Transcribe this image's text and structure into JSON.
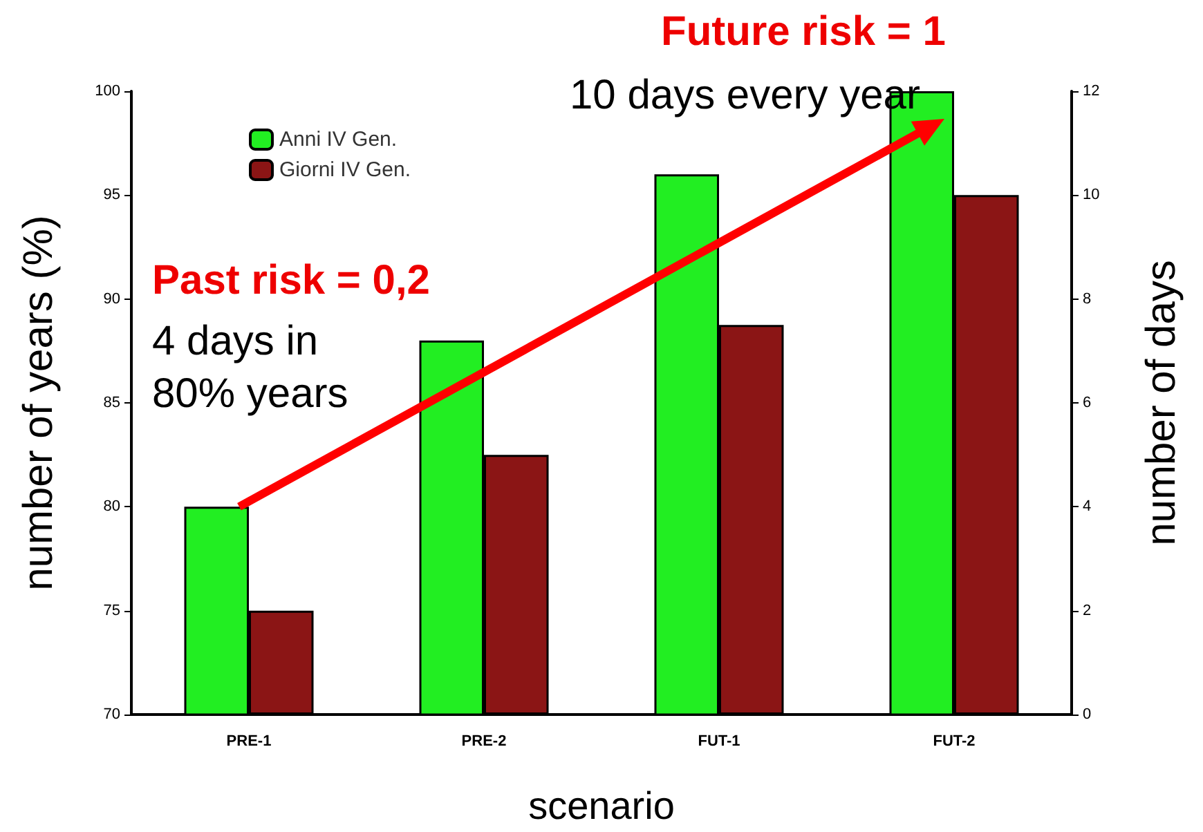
{
  "chart_data": {
    "type": "bar",
    "categories": [
      "PRE-1",
      "PRE-2",
      "FUT-1",
      "FUT-2"
    ],
    "series": [
      {
        "name": "Anni IV Gen.",
        "color": "#22ee22",
        "values": [
          80,
          88,
          96,
          100
        ]
      },
      {
        "name": "Giorni IV Gen.",
        "color": "#8b1515",
        "values": [
          2,
          5,
          7.5,
          10
        ],
        "axis": "y2"
      }
    ],
    "xlabel": "scenario",
    "ylabel": "number of years (%)",
    "y2label": "number of days",
    "ylim": [
      70,
      100
    ],
    "yticks": [
      70,
      75,
      80,
      85,
      90,
      95,
      100
    ],
    "y2lim": [
      0,
      12
    ],
    "y2ticks": [
      0,
      2,
      4,
      6,
      8,
      10,
      12
    ],
    "annotations": [
      "Future risk = 1",
      "10 days every year",
      "Past risk = 0,2",
      "4 days in\n80% years"
    ],
    "legend": "top left",
    "grid": false
  }
}
